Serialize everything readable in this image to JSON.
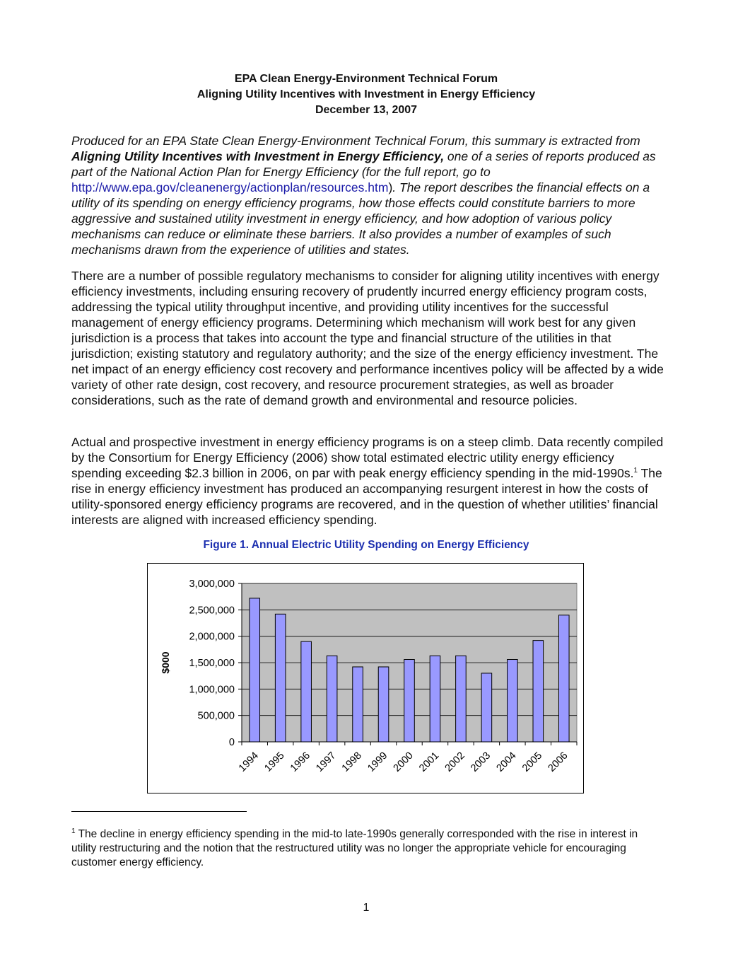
{
  "header": {
    "line1": "EPA Clean Energy-Environment Technical Forum",
    "line2": "Aligning Utility Incentives with Investment in Energy Efficiency",
    "line3": "December 13, 2007"
  },
  "intro": {
    "part1": "Produced for an EPA State Clean Energy-Environment Technical Forum, this summary is extracted from ",
    "report_title": "Aligning Utility Incentives with Investment in Energy Efficiency,",
    "part2": " one of a series of reports produced as part of the National Action Plan for Energy Efficiency (for the full report, go to ",
    "url": "http://www.epa.gov/cleanenergy/actionplan/resources.htm",
    "part3": ")",
    "part4": ". The report describes the financial effects on a utility of its spending on energy efficiency programs, how those effects could constitute barriers to more aggressive and sustained utility investment in energy efficiency, and how adoption of various policy mechanisms can reduce or eliminate these barriers. It also provides a number of examples of such mechanisms drawn from the experience of utilities and states."
  },
  "paragraph2": "There are a number of possible regulatory mechanisms to consider for aligning utility incentives with energy efficiency investments, including ensuring recovery of prudently incurred energy efficiency program costs, addressing the typical utility throughput incentive, and providing utility incentives for the successful management of energy efficiency programs. Determining which mechanism will work best for any given jurisdiction is a process that takes into account the type and financial structure of the utilities in that jurisdiction; existing statutory and regulatory authority; and the size of the energy efficiency investment. The net impact of an energy efficiency cost recovery and performance incentives policy will be affected by a wide variety of other rate design, cost recovery, and resource procurement strategies, as well as broader considerations, such as the rate of demand growth and environmental and resource policies.",
  "paragraph3": {
    "part1": "Actual and prospective investment in energy efficiency programs is on a steep climb. Data recently compiled by the Consortium for Energy Efficiency (2006) show total estimated electric utility energy efficiency spending exceeding $2.3 billion in 2006, on par with peak energy efficiency spending in the mid-1990s.",
    "footnote_mark": "1",
    "part2": " The rise in energy efficiency investment has produced an accompanying resurgent interest in how the costs of utility-sponsored energy efficiency programs are recovered, and in the question of whether utilities’ financial interests are aligned with increased efficiency spending."
  },
  "figure": {
    "caption": "Figure 1. Annual Electric Utility Spending on Energy Efficiency"
  },
  "chart_data": {
    "type": "bar",
    "title": "",
    "xlabel": "",
    "ylabel": "$000",
    "categories": [
      "1994",
      "1995",
      "1996",
      "1997",
      "1998",
      "1999",
      "2000",
      "2001",
      "2002",
      "2003",
      "2004",
      "2005",
      "2006"
    ],
    "values": [
      2720000,
      2420000,
      1900000,
      1630000,
      1420000,
      1420000,
      1560000,
      1630000,
      1630000,
      1300000,
      1560000,
      1920000,
      2400000
    ],
    "yticks": [
      0,
      500000,
      1000000,
      1500000,
      2000000,
      2500000,
      3000000
    ],
    "ytick_labels": [
      "0",
      "500,000",
      "1,000,000",
      "1,500,000",
      "2,000,000",
      "2,500,000",
      "3,000,000"
    ],
    "ylim": [
      0,
      3000000
    ],
    "grid": true,
    "legend": "none",
    "colors": {
      "bar_fill": "#9999ff",
      "bar_stroke": "#000000",
      "plot_bg": "#c0c0c0",
      "gridline": "#000000"
    }
  },
  "footnote": {
    "mark": "1",
    "text": " The decline in energy efficiency spending in the mid-to late-1990s generally corresponded with the rise in interest in utility restructuring and the notion that the restructured utility was no longer the appropriate vehicle for encouraging customer energy efficiency."
  },
  "page_number": "1"
}
